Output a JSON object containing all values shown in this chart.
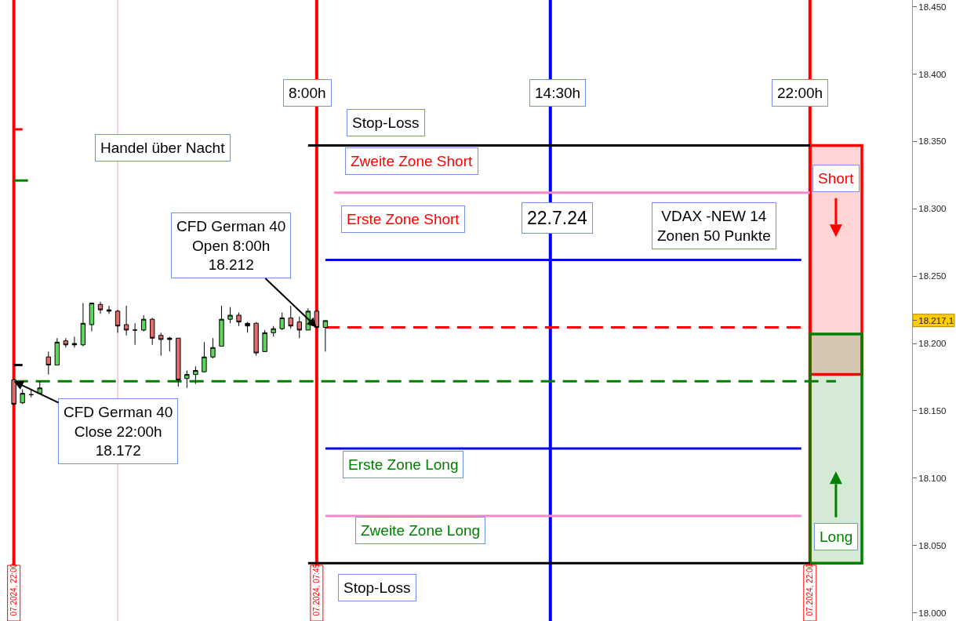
{
  "chart_data": {
    "type": "candlestick",
    "categories": [
      "07.2024, 22:00",
      null,
      null,
      null,
      null,
      null,
      null,
      null,
      null,
      null,
      null,
      null,
      null,
      null,
      null,
      null,
      null,
      null,
      null,
      null,
      null,
      null,
      null,
      null,
      null,
      null,
      null,
      null,
      null,
      null,
      null,
      null,
      null,
      null,
      null,
      "07.2024, 07:45",
      null,
      null,
      null,
      null,
      null,
      null,
      null,
      null,
      null,
      null,
      null,
      null,
      null,
      null,
      null,
      null,
      null,
      null,
      null,
      null,
      null,
      null,
      null,
      null,
      null,
      null,
      null,
      null,
      null,
      null,
      null,
      null,
      null,
      null,
      null,
      null,
      null,
      null,
      null,
      null,
      null,
      null,
      null,
      null,
      null,
      null,
      null,
      null,
      null,
      null,
      null,
      null,
      null,
      null,
      null,
      null,
      "07.2024, 22:00",
      null,
      null,
      null,
      null,
      null,
      null,
      null,
      null,
      null,
      null,
      null
    ],
    "ylim": [
      17994,
      18455
    ],
    "yticks": [
      {
        "value": 18000,
        "label": "18.000"
      },
      {
        "value": 18050,
        "label": "18.050"
      },
      {
        "value": 18100,
        "label": "18.100"
      },
      {
        "value": 18150,
        "label": "18.150"
      },
      {
        "value": 18200,
        "label": "18.200"
      },
      {
        "value": 18250,
        "label": "18.250"
      },
      {
        "value": 18300,
        "label": "18.300"
      },
      {
        "value": 18350,
        "label": "18.350"
      },
      {
        "value": 18400,
        "label": "18.400"
      },
      {
        "value": 18450,
        "label": "18.450"
      },
      {
        "value": 18217.1,
        "label": "18.217,1"
      }
    ],
    "ref_lines": [
      {
        "axis": "x",
        "value": "07.2024, 22:00",
        "color": "#ff0000"
      },
      {
        "axis": "x",
        "value": "07.2024, 07:45",
        "color": "#ff0000"
      }
    ],
    "bands": [
      {
        "axis": "y",
        "from": 18177,
        "to": 18347,
        "label": "Short",
        "color": "#ff0000"
      },
      {
        "axis": "y",
        "from": 18037,
        "to": 18207,
        "label": "Long",
        "color": "#008000"
      }
    ],
    "annotations": [
      "Handel über Nacht",
      {
        "text": "CFD German 40\nOpen 8:00h\n18.212",
        "x": "07.2024, 07:45",
        "y": 18212
      },
      {
        "text": "CFD German 40\nClose 22:00h\n18.172",
        "x": "07.2024, 22:00",
        "y": 18172
      },
      "22.7.24",
      "VDAX -NEW 14\nZonen 50 Punkte",
      "8:00h",
      "14:30h",
      "22:00h",
      "Zweite Zone Short",
      "Erste Zone Short",
      "Erste Zone Long",
      "Zweite Zone Long"
    ],
    "series": [
      {
        "colors": [
          "#e46b6b",
          "#5cd65c",
          "#000000",
          "#5cd65c",
          "#e46b6b",
          "#5cd65c",
          "#e46b6b",
          "#000000",
          "#5cd65c",
          "#5cd65c",
          "#e46b6b",
          "#000000",
          "#e46b6b",
          "#e46b6b",
          "#000000",
          "#5cd65c",
          "#e46b6b",
          "#e46b6b",
          "#000000",
          "#e46b6b",
          "#5cd65c",
          "#5cd65c",
          "#5cd65c",
          "#5cd65c",
          "#5cd65c",
          "#5cd65c",
          "#e46b6b",
          "#000000",
          "#e46b6b",
          "#5cd65c",
          "#5cd65c",
          "#5cd65c",
          "#e46b6b",
          "#e46b6b",
          "#5cd65c",
          "#e46b6b",
          "#5cd65c",
          null,
          null,
          null,
          null,
          null,
          null,
          null,
          null,
          null,
          null,
          null,
          null,
          null,
          null,
          null,
          null,
          null,
          null,
          null,
          null,
          null,
          null,
          null,
          null,
          null,
          null,
          null,
          null,
          null,
          null,
          null,
          null,
          null,
          null,
          null,
          null,
          null,
          null,
          null,
          null,
          null,
          null,
          null,
          null,
          null,
          null,
          null,
          null,
          null,
          null,
          null,
          null,
          null,
          null,
          null,
          null,
          null,
          null,
          null,
          null,
          null,
          null,
          null,
          null,
          null,
          null,
          null
        ],
        "ohlc": [
          [
            18173,
            18174,
            18154,
            18155
          ],
          [
            18156,
            18166,
            18155,
            18163
          ],
          [
            18162,
            18166,
            18160,
            18162
          ],
          [
            18163,
            18172,
            18163,
            18167
          ],
          [
            18190,
            18194,
            18177,
            18184
          ],
          [
            18184,
            18204,
            18184,
            18201
          ],
          [
            18202,
            18204,
            18197,
            18199
          ],
          [
            18200,
            18205,
            18197,
            18199
          ],
          [
            18199,
            18230,
            18198,
            18215
          ],
          [
            18214,
            18230,
            18209,
            18230
          ],
          [
            18229,
            18231,
            18222,
            18225
          ],
          [
            18225,
            18228,
            18222,
            18224
          ],
          [
            18224,
            18225,
            18208,
            18213
          ],
          [
            18214,
            18228,
            18206,
            18210
          ],
          [
            18210,
            18215,
            18199,
            18210
          ],
          [
            18210,
            18221,
            18209,
            18218
          ],
          [
            18218,
            18219,
            18199,
            18204
          ],
          [
            18206,
            18208,
            18191,
            18203
          ],
          [
            18203,
            18205,
            18194,
            18204
          ],
          [
            18204,
            18204,
            18168,
            18173
          ],
          [
            18174,
            18180,
            18167,
            18177
          ],
          [
            18177,
            18183,
            18170,
            18180
          ],
          [
            18179,
            18201,
            18179,
            18190
          ],
          [
            18190,
            18204,
            18189,
            18197
          ],
          [
            18198,
            18228,
            18198,
            18218
          ],
          [
            18218,
            18227,
            18215,
            18221
          ],
          [
            18221,
            18223,
            18213,
            18216
          ],
          [
            18213,
            18216,
            18208,
            18215
          ],
          [
            18215,
            18216,
            18191,
            18193
          ],
          [
            18194,
            18210,
            18194,
            18208
          ],
          [
            18208,
            18213,
            18205,
            18211
          ],
          [
            18211,
            18223,
            18210,
            18219
          ],
          [
            18219,
            18228,
            18211,
            18213
          ],
          [
            18216,
            18220,
            18204,
            18210
          ],
          [
            18210,
            18226,
            18210,
            18224
          ],
          [
            18224,
            18225,
            18211,
            18212
          ],
          [
            18212,
            18217,
            18194,
            18217
          ],
          null,
          null,
          null,
          null,
          null,
          null,
          null,
          null,
          null,
          null,
          null,
          null,
          null,
          null,
          null,
          null,
          null,
          null,
          null,
          null,
          null,
          null,
          null,
          null,
          null,
          null,
          null,
          null,
          null,
          null,
          null,
          null,
          null,
          null,
          null,
          null,
          null,
          null,
          null,
          null,
          null,
          null,
          null,
          null,
          null,
          null,
          null,
          null,
          null,
          null,
          null,
          null,
          null,
          null,
          null,
          null,
          null,
          null,
          null,
          null,
          null,
          null,
          null,
          null,
          null,
          null,
          null
        ]
      },
      {
        "type": "line",
        "name": "Stop-Loss",
        "color": "#000000",
        "values": [
          null,
          null,
          null,
          null,
          null,
          null,
          null,
          null,
          null,
          null,
          null,
          null,
          null,
          null,
          null,
          null,
          null,
          null,
          null,
          null,
          null,
          null,
          null,
          null,
          null,
          null,
          null,
          null,
          null,
          null,
          null,
          null,
          null,
          null,
          18347,
          18347,
          18347,
          18347,
          18347,
          18347,
          18347,
          18347,
          18347,
          18347,
          18347,
          18347,
          18347,
          18347,
          18347,
          18347,
          18347,
          18347,
          18347,
          18347,
          18347,
          18347,
          18347,
          18347,
          18347,
          18347,
          18347,
          18347,
          18347,
          18347,
          18347,
          18347,
          18347,
          18347,
          18347,
          18347,
          18347,
          18347,
          18347,
          18347,
          18347,
          18347,
          18347,
          18347,
          18347,
          18347,
          18347,
          18347,
          18347,
          18347,
          18347,
          18347,
          18347,
          18347,
          18347,
          18347,
          18347,
          18347,
          18347,
          null,
          null,
          null,
          null,
          null,
          null,
          null,
          null,
          null,
          null,
          null
        ]
      },
      {
        "type": "line",
        "color": "#ff88c8",
        "values": [
          null,
          null,
          null,
          null,
          null,
          null,
          null,
          null,
          null,
          null,
          null,
          null,
          null,
          null,
          null,
          null,
          null,
          null,
          null,
          null,
          null,
          null,
          null,
          null,
          null,
          null,
          null,
          null,
          null,
          null,
          null,
          null,
          null,
          null,
          null,
          null,
          null,
          18312,
          18312,
          18312,
          18312,
          18312,
          18312,
          18312,
          18312,
          18312,
          18312,
          18312,
          18312,
          18312,
          18312,
          18312,
          18312,
          18312,
          18312,
          18312,
          18312,
          18312,
          18312,
          18312,
          18312,
          18312,
          18312,
          18312,
          18312,
          18312,
          18312,
          18312,
          18312,
          18312,
          18312,
          18312,
          18312,
          18312,
          18312,
          18312,
          18312,
          18312,
          18312,
          18312,
          18312,
          18312,
          18312,
          18312,
          18312,
          18312,
          18312,
          18312,
          18312,
          18312,
          18312,
          18312,
          18312,
          null,
          null,
          null,
          null,
          null,
          null,
          null,
          null,
          null,
          null,
          null
        ]
      },
      {
        "type": "line",
        "color": "#0a0aee",
        "values": [
          null,
          null,
          null,
          null,
          null,
          null,
          null,
          null,
          null,
          null,
          null,
          null,
          null,
          null,
          null,
          null,
          null,
          null,
          null,
          null,
          null,
          null,
          null,
          null,
          null,
          null,
          null,
          null,
          null,
          null,
          null,
          null,
          null,
          null,
          null,
          null,
          18262,
          18262,
          18262,
          18262,
          18262,
          18262,
          18262,
          18262,
          18262,
          18262,
          18262,
          18262,
          18262,
          18262,
          18262,
          18262,
          18262,
          18262,
          18262,
          18262,
          18262,
          18262,
          18262,
          18262,
          18262,
          18262,
          18262,
          18262,
          18262,
          18262,
          18262,
          18262,
          18262,
          18262,
          18262,
          18262,
          18262,
          18262,
          18262,
          18262,
          18262,
          18262,
          18262,
          18262,
          18262,
          18262,
          18262,
          18262,
          18262,
          18262,
          18262,
          18262,
          18262,
          18262,
          18262,
          18262,
          null,
          null,
          null,
          null,
          null,
          null,
          null,
          null,
          null,
          null,
          null,
          null
        ]
      },
      {
        "type": "line",
        "color": "#ff0000",
        "line_style": "dashed",
        "values": [
          null,
          null,
          null,
          null,
          null,
          null,
          null,
          null,
          null,
          null,
          null,
          null,
          null,
          null,
          null,
          null,
          null,
          null,
          null,
          null,
          null,
          null,
          null,
          null,
          null,
          null,
          null,
          null,
          null,
          null,
          null,
          null,
          null,
          null,
          null,
          null,
          18212,
          18212,
          18212,
          18212,
          18212,
          18212,
          18212,
          18212,
          18212,
          18212,
          18212,
          18212,
          18212,
          18212,
          18212,
          18212,
          18212,
          18212,
          18212,
          18212,
          18212,
          18212,
          18212,
          18212,
          18212,
          18212,
          18212,
          18212,
          18212,
          18212,
          18212,
          18212,
          18212,
          18212,
          18212,
          18212,
          18212,
          18212,
          18212,
          18212,
          18212,
          18212,
          18212,
          18212,
          18212,
          18212,
          18212,
          18212,
          18212,
          18212,
          18212,
          18212,
          18212,
          18212,
          18212,
          18212,
          18212,
          null,
          null,
          null,
          null,
          null,
          null,
          null,
          null,
          null,
          null,
          null
        ]
      },
      {
        "type": "line",
        "color": "#008000",
        "line_style": "dashed",
        "values": [
          18172,
          18172,
          18172,
          18172,
          18172,
          18172,
          18172,
          18172,
          18172,
          18172,
          18172,
          18172,
          18172,
          18172,
          18172,
          18172,
          18172,
          18172,
          18172,
          18172,
          18172,
          18172,
          18172,
          18172,
          18172,
          18172,
          18172,
          18172,
          18172,
          18172,
          18172,
          18172,
          18172,
          18172,
          18172,
          18172,
          18172,
          18172,
          18172,
          18172,
          18172,
          18172,
          18172,
          18172,
          18172,
          18172,
          18172,
          18172,
          18172,
          18172,
          18172,
          18172,
          18172,
          18172,
          18172,
          18172,
          18172,
          18172,
          18172,
          18172,
          18172,
          18172,
          18172,
          18172,
          18172,
          18172,
          18172,
          18172,
          18172,
          18172,
          18172,
          18172,
          18172,
          18172,
          18172,
          18172,
          18172,
          18172,
          18172,
          18172,
          18172,
          18172,
          18172,
          18172,
          18172,
          18172,
          18172,
          18172,
          18172,
          18172,
          18172,
          18172,
          18172,
          18172,
          18172,
          18172,
          null,
          null,
          null,
          null,
          null,
          null,
          null,
          null
        ]
      },
      {
        "type": "line",
        "color": "#0a0aee",
        "values": [
          null,
          null,
          null,
          null,
          null,
          null,
          null,
          null,
          null,
          null,
          null,
          null,
          null,
          null,
          null,
          null,
          null,
          null,
          null,
          null,
          null,
          null,
          null,
          null,
          null,
          null,
          null,
          null,
          null,
          null,
          null,
          null,
          null,
          null,
          null,
          null,
          18122,
          18122,
          18122,
          18122,
          18122,
          18122,
          18122,
          18122,
          18122,
          18122,
          18122,
          18122,
          18122,
          18122,
          18122,
          18122,
          18122,
          18122,
          18122,
          18122,
          18122,
          18122,
          18122,
          18122,
          18122,
          18122,
          18122,
          18122,
          18122,
          18122,
          18122,
          18122,
          18122,
          18122,
          18122,
          18122,
          18122,
          18122,
          18122,
          18122,
          18122,
          18122,
          18122,
          18122,
          18122,
          18122,
          18122,
          18122,
          18122,
          18122,
          18122,
          18122,
          18122,
          18122,
          18122,
          18122,
          null,
          null,
          null,
          null,
          null,
          null,
          null,
          null,
          null,
          null,
          null,
          null
        ]
      },
      {
        "type": "line",
        "color": "#ff88c8",
        "values": [
          null,
          null,
          null,
          null,
          null,
          null,
          null,
          null,
          null,
          null,
          null,
          null,
          null,
          null,
          null,
          null,
          null,
          null,
          null,
          null,
          null,
          null,
          null,
          null,
          null,
          null,
          null,
          null,
          null,
          null,
          null,
          null,
          null,
          null,
          null,
          null,
          18072,
          18072,
          18072,
          18072,
          18072,
          18072,
          18072,
          18072,
          18072,
          18072,
          18072,
          18072,
          18072,
          18072,
          18072,
          18072,
          18072,
          18072,
          18072,
          18072,
          18072,
          18072,
          18072,
          18072,
          18072,
          18072,
          18072,
          18072,
          18072,
          18072,
          18072,
          18072,
          18072,
          18072,
          18072,
          18072,
          18072,
          18072,
          18072,
          18072,
          18072,
          18072,
          18072,
          18072,
          18072,
          18072,
          18072,
          18072,
          18072,
          18072,
          18072,
          18072,
          18072,
          18072,
          18072,
          18072,
          null,
          null,
          null,
          null,
          null,
          null,
          null,
          null,
          null,
          null,
          null,
          null
        ]
      },
      {
        "type": "line",
        "name": "Stop-Loss",
        "color": "#000000",
        "values": [
          null,
          null,
          null,
          null,
          null,
          null,
          null,
          null,
          null,
          null,
          null,
          null,
          null,
          null,
          null,
          null,
          null,
          null,
          null,
          null,
          null,
          null,
          null,
          null,
          null,
          null,
          null,
          null,
          null,
          null,
          null,
          null,
          null,
          null,
          18037,
          18037,
          18037,
          18037,
          18037,
          18037,
          18037,
          18037,
          18037,
          18037,
          18037,
          18037,
          18037,
          18037,
          18037,
          18037,
          18037,
          18037,
          18037,
          18037,
          18037,
          18037,
          18037,
          18037,
          18037,
          18037,
          18037,
          18037,
          18037,
          18037,
          18037,
          18037,
          18037,
          18037,
          18037,
          18037,
          18037,
          18037,
          18037,
          18037,
          18037,
          18037,
          18037,
          18037,
          18037,
          18037,
          18037,
          18037,
          18037,
          18037,
          18037,
          18037,
          18037,
          18037,
          18037,
          18037,
          18037,
          18037,
          18037,
          null,
          null,
          null,
          null,
          null,
          null,
          null,
          null,
          null,
          null,
          null
        ]
      },
      {
        "type": "line",
        "color": "#ff0000",
        "values": [
          18359,
          18359,
          null,
          null,
          null,
          null,
          null,
          null,
          null,
          null,
          null,
          null,
          null,
          null,
          null,
          null,
          null,
          null,
          null,
          null,
          null,
          null,
          null,
          null,
          null,
          null,
          null,
          null,
          null,
          null,
          null,
          null,
          null,
          null,
          null,
          null,
          null,
          null,
          null,
          null,
          null,
          null,
          null,
          null,
          null,
          null,
          null,
          null,
          null,
          null,
          null,
          null,
          null,
          null,
          null,
          null,
          null,
          null,
          null,
          null,
          null,
          null,
          null,
          null,
          null,
          null,
          null,
          null,
          null,
          null,
          null,
          null,
          null,
          null,
          null,
          null,
          null,
          null,
          null,
          null,
          null,
          null,
          null,
          null,
          null,
          null,
          null,
          null,
          null,
          null,
          null,
          null,
          null,
          null,
          null,
          null,
          null,
          null,
          null,
          null,
          null,
          null,
          null,
          null
        ]
      },
      {
        "type": "line",
        "color": "#008000",
        "line_style": "dashed",
        "values": [
          18321,
          18321,
          18321,
          null,
          null,
          null,
          null,
          null,
          null,
          null,
          null,
          null,
          null,
          null,
          null,
          null,
          null,
          null,
          null,
          null,
          null,
          null,
          null,
          null,
          null,
          null,
          null,
          null,
          null,
          null,
          null,
          null,
          null,
          null,
          null,
          null,
          null,
          null,
          null,
          null,
          null,
          null,
          null,
          null,
          null,
          null,
          null,
          null,
          null,
          null,
          null,
          null,
          null,
          null,
          null,
          null,
          null,
          null,
          null,
          null,
          null,
          null,
          null,
          null,
          null,
          null,
          null,
          null,
          null,
          null,
          null,
          null,
          null,
          null,
          null,
          null,
          null,
          null,
          null,
          null,
          null,
          null,
          null,
          null,
          null,
          null,
          null,
          null,
          null,
          null,
          null,
          null,
          null,
          null,
          null,
          null,
          null,
          null,
          null,
          null,
          null,
          null,
          null,
          null
        ]
      },
      {
        "type": "line",
        "color": "#000000",
        "values": [
          18184,
          18184,
          null,
          null,
          null,
          null,
          null,
          null,
          null,
          null,
          null,
          null,
          null,
          null,
          null,
          null,
          null,
          null,
          null,
          null,
          null,
          null,
          null,
          null,
          null,
          null,
          null,
          null,
          null,
          null,
          null,
          null,
          null,
          null,
          null,
          null,
          null,
          null,
          null,
          null,
          null,
          null,
          null,
          null,
          null,
          null,
          null,
          null,
          null,
          null,
          null,
          null,
          null,
          null,
          null,
          null,
          null,
          null,
          null,
          null,
          null,
          null,
          null,
          null,
          null,
          null,
          null,
          null,
          null,
          null,
          null,
          null,
          null,
          null,
          null,
          null,
          null,
          null,
          null,
          null,
          null,
          null,
          null,
          null,
          null,
          null,
          null,
          null,
          null,
          null,
          null,
          null,
          null,
          null,
          null,
          null,
          null,
          null,
          null,
          null,
          null,
          null,
          null,
          null
        ]
      }
    ]
  }
}
